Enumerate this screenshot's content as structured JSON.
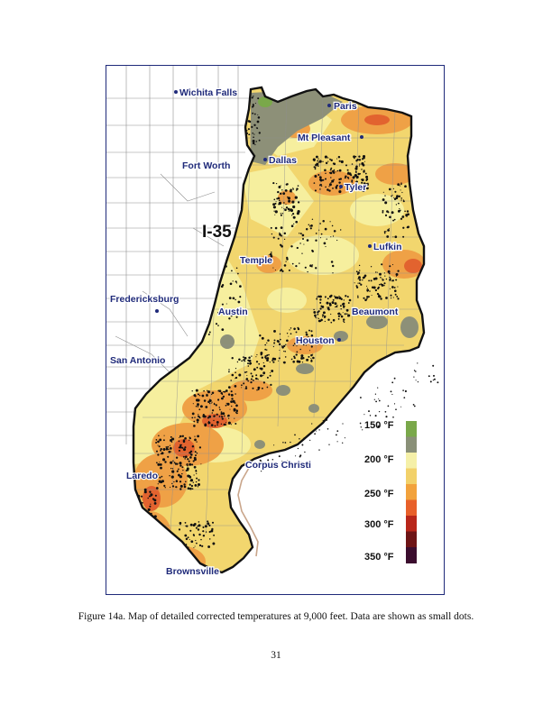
{
  "map": {
    "cities": {
      "wichita_falls": "Wichita Falls",
      "paris": "Paris",
      "mt_pleasant": "Mt Pleasant",
      "fort_worth": "Fort Worth",
      "dallas": "Dallas",
      "tyler": "Tyler",
      "lufkin": "Lufkin",
      "temple": "Temple",
      "fredericksburg": "Fredericksburg",
      "austin": "Austin",
      "beaumont": "Beaumont",
      "houston": "Houston",
      "san_antonio": "San Antonio",
      "corpus_christi": "Corpus Christi",
      "laredo": "Laredo",
      "brownsville": "Brownsville"
    },
    "interstate_label": "I-35",
    "legend": {
      "labels": [
        "150 °F",
        "200 °F",
        "250 °F",
        "300 °F",
        "350 °F"
      ],
      "colors": [
        "#7aa84a",
        "#8a9078",
        "#f5f0a8",
        "#f2d16a",
        "#f2a23c",
        "#e8602a",
        "#b8261a",
        "#6e1416",
        "#3b0d2e"
      ]
    },
    "fill_colors": {
      "base": "#f2d66e",
      "light": "#f6ef9e",
      "orange": "#efa146",
      "red": "#e2632f",
      "gray": "#8d9078",
      "green": "#7aa84a",
      "county_line": "#8f8f8f",
      "border": "#111111",
      "label": "#1f2a7a"
    }
  },
  "caption": "Figure 14a. Map of detailed corrected temperatures at 9,000 feet. Data are shown as small dots.",
  "page_number": "31"
}
